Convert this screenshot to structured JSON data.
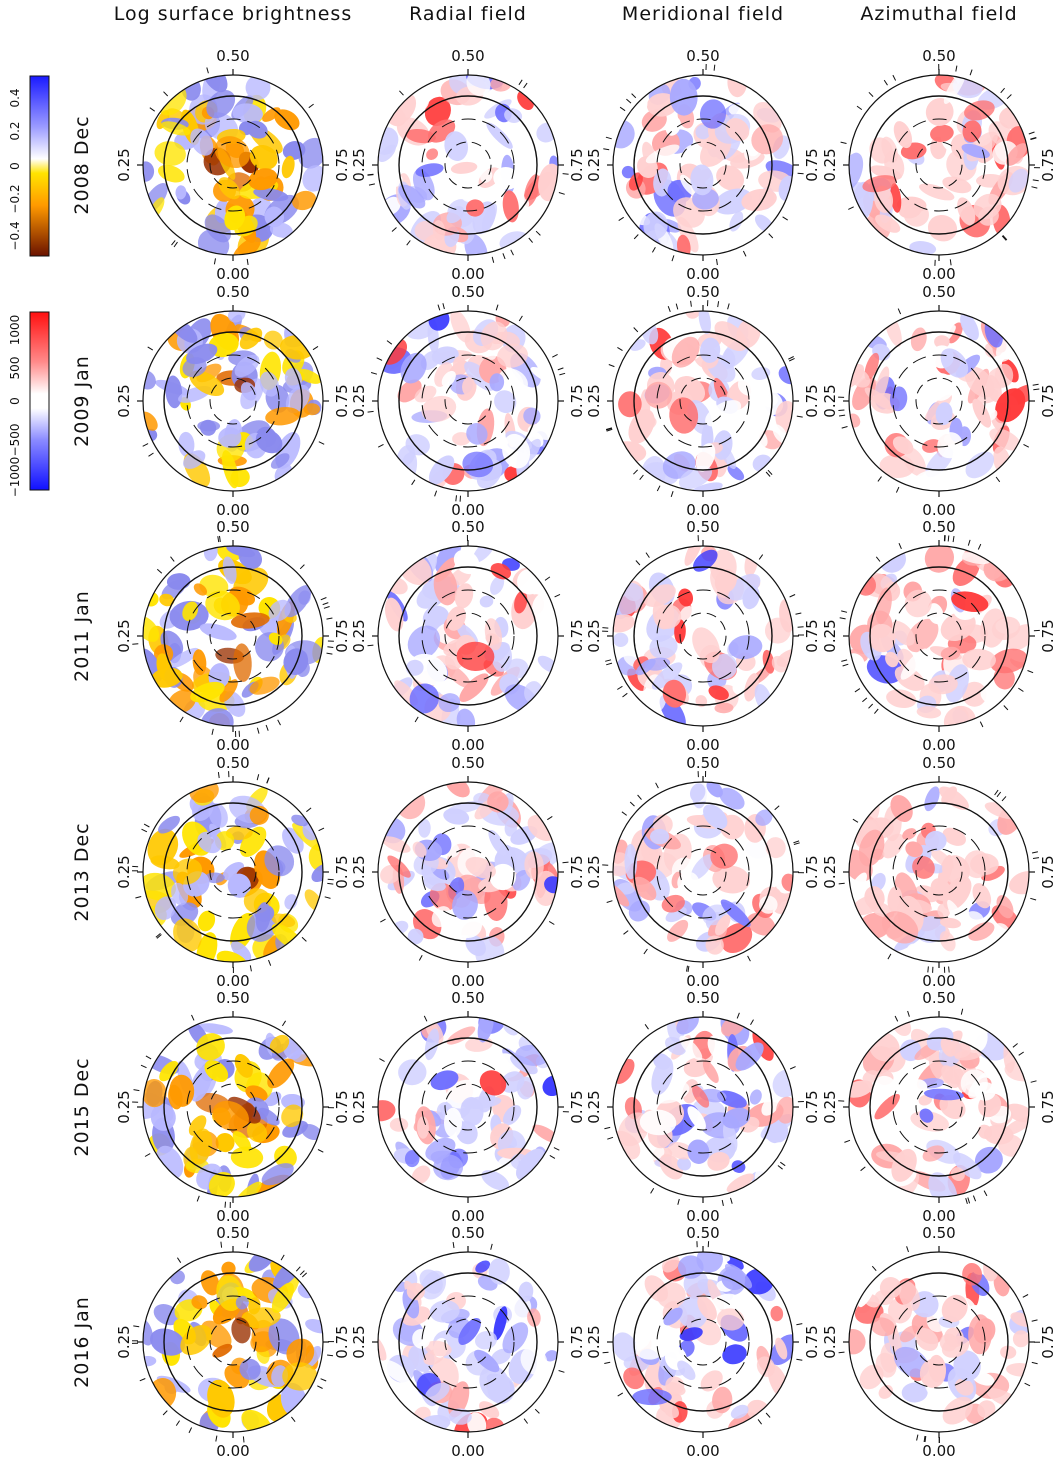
{
  "figure": {
    "column_titles": [
      "Log surface brightness",
      "Radial field",
      "Meridional field",
      "Azimuthal field"
    ],
    "row_labels": [
      "2008 Dec",
      "2009 Jan",
      "2011 Jan",
      "2013 Dec",
      "2015 Dec",
      "2016 Jan"
    ],
    "phase_labels": {
      "top": "0.50",
      "bottom": "0.00",
      "left": "0.25",
      "right": "0.75"
    },
    "colorbars": [
      {
        "name": "brightness",
        "tick_labels": [
          "0.4",
          "0.2",
          "0",
          "−0.2",
          "−0.4"
        ],
        "colors": [
          "#1a1aff",
          "#7a7aff",
          "#ffffff",
          "#ffd400",
          "#ff8c00",
          "#7a1a00"
        ]
      },
      {
        "name": "field",
        "tick_labels": [
          "1000",
          "500",
          "0",
          "−500",
          "−1000"
        ],
        "colors": [
          "#ff1a1a",
          "#ff8080",
          "#ffffff",
          "#8080ff",
          "#1a1aff"
        ]
      }
    ],
    "palettes": {
      "brightness": [
        "#ffe400",
        "#ffc800",
        "#ff9900",
        "#e06a00",
        "#9a3000",
        "#b8b8ff",
        "#8a8aee"
      ],
      "field_pos": [
        "#ffd0d0",
        "#ffa8a8",
        "#ff7070",
        "#ff3a3a"
      ],
      "field_neg": [
        "#d0d0ff",
        "#a8a8ff",
        "#7070ff",
        "#3a3aff"
      ]
    }
  }
}
